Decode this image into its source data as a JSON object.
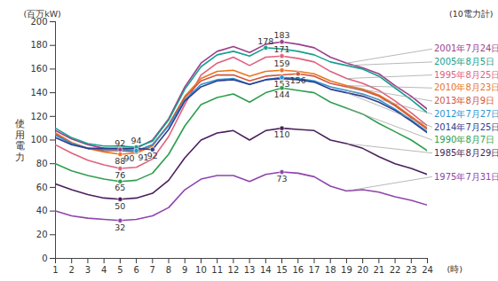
{
  "chart_data": {
    "type": "line",
    "subtitle": "(10電力計)",
    "ylabel": "使用電力",
    "y_unit": "(百万kW)",
    "x_unit": "(時)",
    "x": [
      1,
      2,
      3,
      4,
      5,
      6,
      7,
      8,
      9,
      10,
      11,
      12,
      13,
      14,
      15,
      16,
      17,
      18,
      19,
      20,
      21,
      22,
      23,
      24
    ],
    "xlim": [
      1,
      24
    ],
    "xticks": [
      1,
      2,
      3,
      4,
      5,
      6,
      7,
      8,
      9,
      10,
      11,
      12,
      13,
      14,
      15,
      16,
      17,
      18,
      19,
      20,
      21,
      22,
      23,
      24
    ],
    "ylim": [
      0,
      200
    ],
    "yticks": [
      0,
      20,
      40,
      60,
      80,
      100,
      120,
      140,
      160,
      180,
      200
    ],
    "grid": false,
    "series": [
      {
        "name": "2001年7月24日",
        "color": "#9b3f8f",
        "labels_at": [
          5,
          15
        ],
        "values": [
          108,
          101,
          96,
          93,
          92,
          93,
          100,
          118,
          145,
          165,
          175,
          179,
          174,
          181,
          183,
          181,
          178,
          170,
          165,
          161,
          156,
          146,
          137,
          126
        ]
      },
      {
        "name": "2005年8月5日",
        "color": "#17a08c",
        "labels_at": [
          6,
          14
        ],
        "values": [
          110,
          102,
          97,
          95,
          95,
          94,
          99,
          117,
          143,
          162,
          172,
          175,
          171,
          178,
          177,
          175,
          172,
          166,
          163,
          160,
          154,
          144,
          134,
          123
        ]
      },
      {
        "name": "1995年8月25日",
        "color": "#e0607e",
        "labels_at": [
          5,
          15
        ],
        "values": [
          96,
          89,
          83,
          79,
          76,
          77,
          84,
          103,
          130,
          155,
          165,
          170,
          163,
          170,
          171,
          169,
          166,
          158,
          152,
          148,
          142,
          133,
          123,
          112
        ]
      },
      {
        "name": "2010年8月23日",
        "color": "#e8761f",
        "labels_at": [
          5,
          15
        ],
        "values": [
          106,
          98,
          93,
          90,
          88,
          89,
          95,
          113,
          137,
          152,
          158,
          159,
          154,
          158,
          159,
          158,
          156,
          150,
          146,
          143,
          138,
          130,
          120,
          110
        ]
      },
      {
        "name": "2013年8月9日",
        "color": "#d2553c",
        "labels_at": [
          6,
          16
        ],
        "values": [
          105,
          97,
          93,
          91,
          91,
          90,
          96,
          113,
          136,
          150,
          155,
          155,
          150,
          154,
          155,
          156,
          154,
          148,
          145,
          142,
          137,
          129,
          119,
          109
        ]
      },
      {
        "name": "2012年7月27日",
        "color": "#2b93d1",
        "labels_at": [
          6,
          15
        ],
        "values": [
          104,
          97,
          93,
          92,
          92,
          91,
          96,
          112,
          134,
          147,
          151,
          152,
          147,
          151,
          153,
          152,
          150,
          145,
          142,
          139,
          134,
          126,
          117,
          107
        ]
      },
      {
        "name": "2014年7月25日",
        "color": "#2e3d8f",
        "labels_at": [
          7
        ],
        "values": [
          102,
          96,
          93,
          93,
          93,
          93,
          92,
          109,
          133,
          145,
          150,
          151,
          147,
          151,
          152,
          151,
          149,
          143,
          140,
          137,
          132,
          125,
          116,
          106
        ]
      },
      {
        "name": "1990年8月7日",
        "color": "#2e9e4f",
        "labels_at": [
          5,
          15
        ],
        "values": [
          80,
          74,
          70,
          67,
          65,
          66,
          72,
          88,
          112,
          130,
          136,
          139,
          132,
          140,
          144,
          142,
          140,
          132,
          127,
          122,
          114,
          107,
          100,
          91
        ]
      },
      {
        "name": "1985年8月29日",
        "color": "#4a1f5c",
        "labels_at": [
          5,
          15
        ],
        "values": [
          63,
          58,
          54,
          51,
          50,
          51,
          55,
          66,
          85,
          100,
          106,
          108,
          100,
          108,
          110,
          109,
          108,
          100,
          97,
          93,
          86,
          80,
          76,
          71
        ]
      },
      {
        "name": "1975年7月31日",
        "color": "#8e44ad",
        "labels_at": [
          5,
          15
        ],
        "values": [
          40,
          36,
          34,
          33,
          32,
          33,
          36,
          43,
          58,
          67,
          70,
          70,
          65,
          71,
          73,
          72,
          69,
          61,
          57,
          58,
          56,
          52,
          49,
          45
        ]
      }
    ]
  }
}
